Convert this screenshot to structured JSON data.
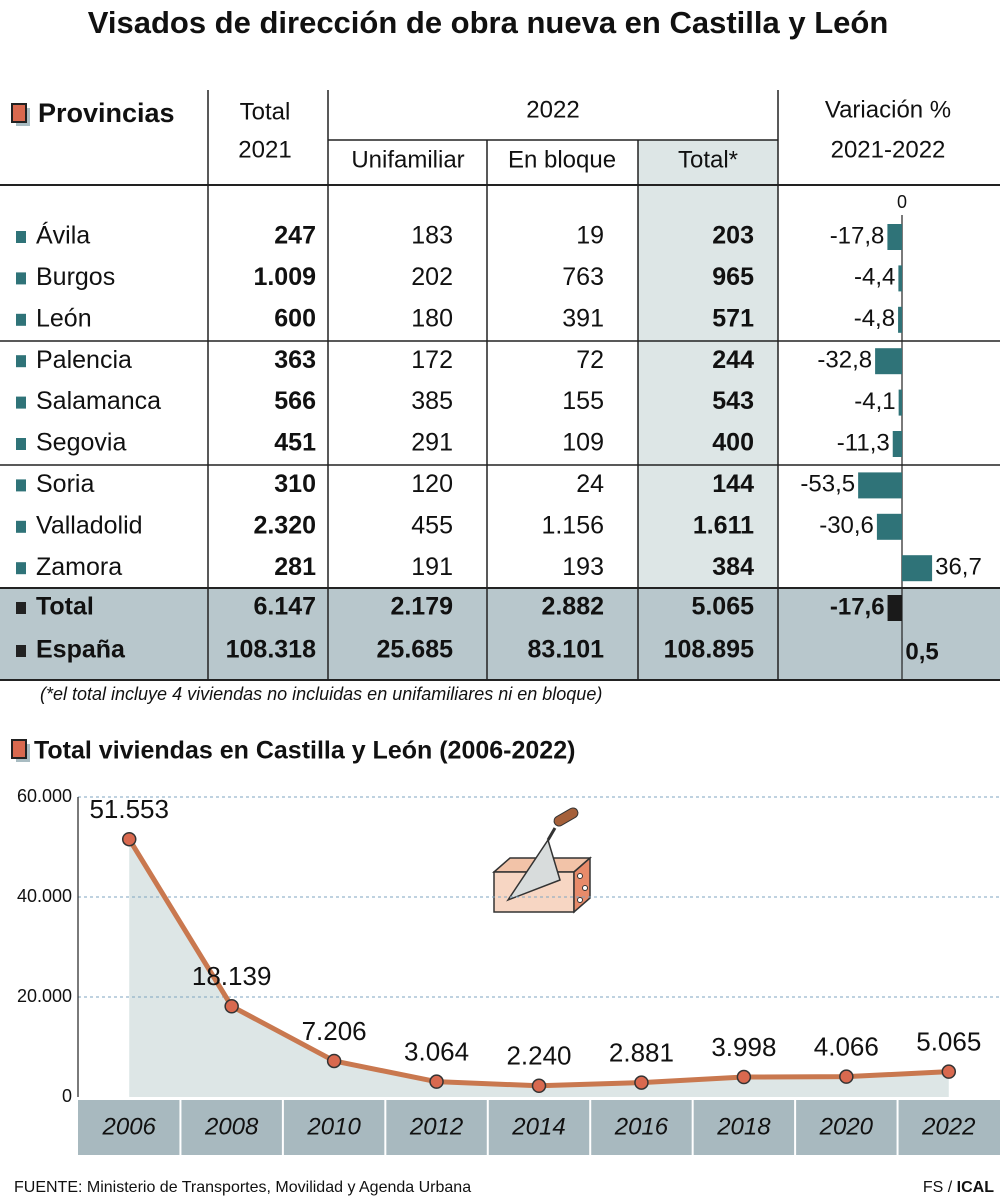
{
  "title": "Visados de dirección de obra nueva en Castilla y León",
  "table": {
    "header": {
      "provincias": "Provincias",
      "total_2021": [
        "Total",
        "2021"
      ],
      "year": "2022",
      "unifamiliar": "Unifamiliar",
      "en_bloque": "En bloque",
      "total_2022": "Total*",
      "variacion": [
        "Variación %",
        "2021-2022"
      ]
    },
    "variacion_axis": {
      "xlim": [
        -60,
        40
      ],
      "xticks": [
        0
      ]
    },
    "rows": [
      {
        "name": "Ávila",
        "total_2021": "247",
        "unifamiliar": "183",
        "en_bloque": "19",
        "total_2022": "203",
        "variacion": {
          "value": -17.8,
          "label": "-17,8"
        }
      },
      {
        "name": "Burgos",
        "total_2021": "1.009",
        "unifamiliar": "202",
        "en_bloque": "763",
        "total_2022": "965",
        "variacion": {
          "value": -4.4,
          "label": "-4,4"
        }
      },
      {
        "name": "León",
        "total_2021": "600",
        "unifamiliar": "180",
        "en_bloque": "391",
        "total_2022": "571",
        "variacion": {
          "value": -4.8,
          "label": "-4,8"
        }
      },
      {
        "name": "Palencia",
        "total_2021": "363",
        "unifamiliar": "172",
        "en_bloque": "72",
        "total_2022": "244",
        "variacion": {
          "value": -32.8,
          "label": "-32,8"
        }
      },
      {
        "name": "Salamanca",
        "total_2021": "566",
        "unifamiliar": "385",
        "en_bloque": "155",
        "total_2022": "543",
        "variacion": {
          "value": -4.1,
          "label": "-4,1"
        }
      },
      {
        "name": "Segovia",
        "total_2021": "451",
        "unifamiliar": "291",
        "en_bloque": "109",
        "total_2022": "400",
        "variacion": {
          "value": -11.3,
          "label": "-11,3"
        }
      },
      {
        "name": "Soria",
        "total_2021": "310",
        "unifamiliar": "120",
        "en_bloque": "24",
        "total_2022": "144",
        "variacion": {
          "value": -53.5,
          "label": "-53,5"
        }
      },
      {
        "name": "Valladolid",
        "total_2021": "2.320",
        "unifamiliar": "455",
        "en_bloque": "1.156",
        "total_2022": "1.611",
        "variacion": {
          "value": -30.6,
          "label": "-30,6"
        }
      },
      {
        "name": "Zamora",
        "total_2021": "281",
        "unifamiliar": "191",
        "en_bloque": "193",
        "total_2022": "384",
        "variacion": {
          "value": 36.7,
          "label": "36,7"
        }
      }
    ],
    "totals": [
      {
        "name": "Total",
        "total_2021": "6.147",
        "unifamiliar": "2.179",
        "en_bloque": "2.882",
        "total_2022": "5.065",
        "variacion": {
          "value": -17.6,
          "label": "-17,6"
        }
      },
      {
        "name": "España",
        "total_2021": "108.318",
        "unifamiliar": "25.685",
        "en_bloque": "83.101",
        "total_2022": "108.895",
        "variacion": {
          "value": 0.5,
          "label": "0,5"
        }
      }
    ],
    "footnote": "(*el total incluye 4 viviendas no incluidas en unifamiliares ni en bloque)"
  },
  "chart_data": {
    "type": "line",
    "title": "Total viviendas en Castilla y León (2006-2022)",
    "categories": [
      "2006",
      "2008",
      "2010",
      "2012",
      "2014",
      "2016",
      "2018",
      "2020",
      "2022"
    ],
    "values": [
      51553,
      18139,
      7206,
      3064,
      2240,
      2881,
      3998,
      4066,
      5065
    ],
    "value_labels": [
      "51.553",
      "18.139",
      "7.206",
      "3.064",
      "2.240",
      "2.881",
      "3.998",
      "4.066",
      "5.065"
    ],
    "color": "#c9784f",
    "ylim": [
      0,
      60000
    ],
    "yticks": [
      0,
      {
        "value": 20000,
        "label": "20.000"
      },
      {
        "value": 40000,
        "label": "40.000"
      },
      {
        "value": 60000,
        "label": "60.000"
      }
    ],
    "grid": true
  },
  "source": "FUENTE: Ministerio de Transportes, Movilidad y Agenda Urbana",
  "credit": {
    "author": "FS",
    "separator": " / ",
    "agency": "ICAL"
  }
}
